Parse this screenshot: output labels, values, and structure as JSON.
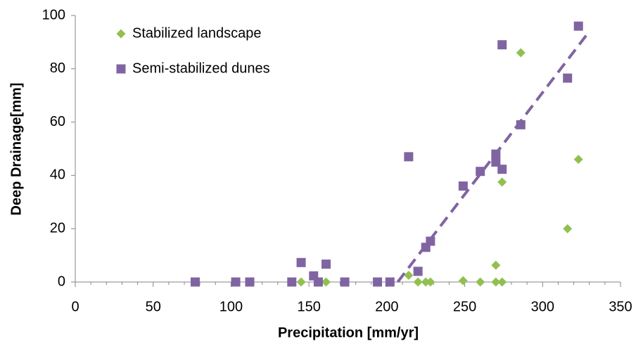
{
  "chart_data": {
    "type": "scatter",
    "x_label": "Precipitation [mm/yr]",
    "y_label": "Deep Drainage[mm]",
    "xlim": [
      0,
      350
    ],
    "ylim": [
      0,
      100
    ],
    "xticks": [
      0,
      50,
      100,
      150,
      200,
      250,
      300,
      350
    ],
    "yticks": [
      0,
      20,
      40,
      60,
      80,
      100
    ],
    "legend": "top-left",
    "series": [
      {
        "name": "Stabilized landscape",
        "color": "#92c050",
        "marker": "diamond",
        "x": [
          145,
          161,
          214,
          220,
          225,
          228,
          249,
          260,
          270,
          270,
          274,
          274,
          286,
          316,
          323
        ],
        "values": [
          0,
          0,
          2.5,
          0,
          0,
          0,
          0.5,
          0,
          6.3,
          0,
          0,
          37.5,
          86,
          20,
          46
        ]
      },
      {
        "name": "Semi-stabilized dunes",
        "color": "#8064a2",
        "marker": "square",
        "x": [
          77,
          103,
          112,
          139,
          145,
          153,
          156,
          161,
          173,
          194,
          202,
          214,
          220,
          225,
          228,
          249,
          260,
          270,
          270,
          274,
          274,
          286,
          316,
          323
        ],
        "values": [
          0,
          0,
          0,
          0,
          7.3,
          2.3,
          0,
          6.7,
          0,
          0,
          0,
          47,
          4,
          13,
          15.3,
          36,
          41.5,
          48,
          45,
          42.3,
          89,
          59,
          76.5,
          96
        ]
      }
    ],
    "trend": {
      "color": "#8064a2",
      "x": [
        207,
        328
      ],
      "values": [
        0,
        92.5
      ]
    }
  }
}
